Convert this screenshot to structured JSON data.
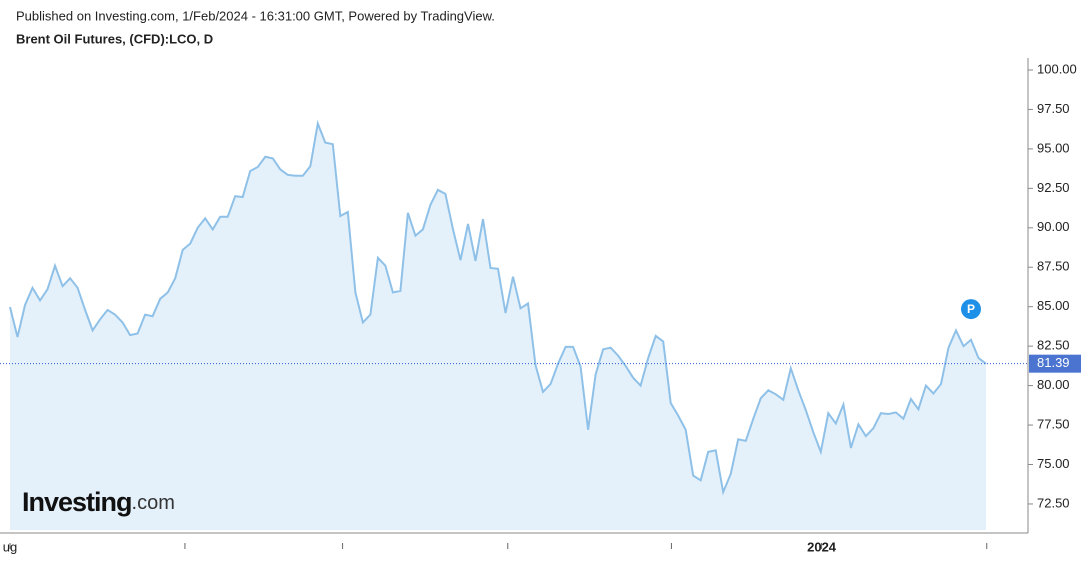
{
  "header": "Published on Investing.com, 1/Feb/2024 - 16:31:00 GMT, Powered by TradingView.",
  "brand": {
    "name": "Investing",
    "suffix": ".com"
  },
  "chart_data": {
    "type": "area",
    "title": "Brent Oil Futures, (CFD):LCO, D",
    "line_color": "#8fc1e8",
    "fill_color": "#e4f1fb",
    "values": [
      84.98,
      83.08,
      85.1,
      86.2,
      85.4,
      86.1,
      87.6,
      86.3,
      86.8,
      86.2,
      84.8,
      83.5,
      84.2,
      84.8,
      84.5,
      84.0,
      83.2,
      83.3,
      84.5,
      84.4,
      85.5,
      85.9,
      86.8,
      88.6,
      89.0,
      90.0,
      90.6,
      89.9,
      90.7,
      90.7,
      92.0,
      91.95,
      93.6,
      93.85,
      94.5,
      94.4,
      93.7,
      93.35,
      93.3,
      93.3,
      93.9,
      96.6,
      95.4,
      95.3,
      90.75,
      91.0,
      85.9,
      84.0,
      84.5,
      88.1,
      87.6,
      85.9,
      86.0,
      90.95,
      89.5,
      89.9,
      91.45,
      92.4,
      92.15,
      89.9,
      87.95,
      90.25,
      87.9,
      90.55,
      87.45,
      87.4,
      84.6,
      86.9,
      84.9,
      85.2,
      81.3,
      79.6,
      80.1,
      81.4,
      82.45,
      82.45,
      81.2,
      77.2,
      80.7,
      82.3,
      82.4,
      81.9,
      81.25,
      80.5,
      80.0,
      81.75,
      83.15,
      82.8,
      78.9,
      78.1,
      77.2,
      74.3,
      74.0,
      75.8,
      75.9,
      73.25,
      74.4,
      76.6,
      76.5,
      77.9,
      79.2,
      79.7,
      79.45,
      79.1,
      81.1,
      79.7,
      78.45,
      77.05,
      75.8,
      78.25,
      77.6,
      78.8,
      76.05,
      77.55,
      76.8,
      77.3,
      78.25,
      78.2,
      78.3,
      77.9,
      79.15,
      78.5,
      80.0,
      79.5,
      80.1,
      82.4,
      83.5,
      82.5,
      82.9,
      81.75,
      81.39
    ],
    "last_price": 81.39,
    "marker": {
      "label": "P",
      "index": 128,
      "value": 84.85
    },
    "ylim": [
      70.66,
      100.76
    ],
    "yticks": [
      {
        "value": 72.5,
        "label": "72.50"
      },
      {
        "value": 75,
        "label": "75.00"
      },
      {
        "value": 77.5,
        "label": "77.50"
      },
      {
        "value": 80,
        "label": "80.00"
      },
      {
        "value": 82.5,
        "label": "82.50"
      },
      {
        "value": 85,
        "label": "85.00"
      },
      {
        "value": 87.5,
        "label": "87.50"
      },
      {
        "value": 90,
        "label": "90.00"
      },
      {
        "value": 92.5,
        "label": "92.50"
      },
      {
        "value": 95,
        "label": "95.00"
      },
      {
        "value": 97.5,
        "label": "97.50"
      },
      {
        "value": 100,
        "label": "100.00"
      }
    ],
    "xticks": [
      {
        "value": 0,
        "label": "ug"
      },
      {
        "value": 23.3,
        "label": null
      },
      {
        "value": 44.3,
        "label": null
      },
      {
        "value": 66.3,
        "label": null
      },
      {
        "value": 88.1,
        "label": null
      },
      {
        "value": 108.1,
        "label": "2024"
      },
      {
        "value": 130.1,
        "label": null
      }
    ]
  }
}
